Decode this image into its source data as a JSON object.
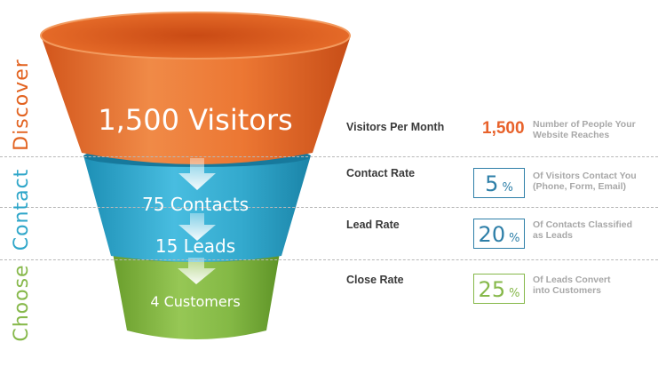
{
  "stages": {
    "discover": "Discover",
    "contact": "Contact",
    "choose": "Choose"
  },
  "funnel": {
    "visitors": "1,500 Visitors",
    "contacts": "75 Contacts",
    "leads": "15 Leads",
    "customers": "4 Customers"
  },
  "metrics": {
    "visitors": {
      "label": "Visitors Per Month",
      "value": "1,500",
      "desc_line1": "Number of People Your",
      "desc_line2": "Website Reaches"
    },
    "contact": {
      "label": "Contact Rate",
      "value": "5",
      "unit": "%",
      "desc_line1": "Of Visitors Contact You",
      "desc_line2": "(Phone, Form, Email)"
    },
    "lead": {
      "label": "Lead Rate",
      "value": "20",
      "unit": "%",
      "desc_line1": "Of Contacts Classified",
      "desc_line2": "as Leads"
    },
    "close": {
      "label": "Close Rate",
      "value": "25",
      "unit": "%",
      "desc_line1": "Of Leads Convert",
      "desc_line2": "into Customers"
    }
  },
  "colors": {
    "orange": "#e2621f",
    "blue": "#2ea6c9",
    "green": "#7fb33d",
    "rate_blue": "#2e7fa8",
    "rate_green": "#86b84a",
    "value_orange": "#e8622b"
  }
}
